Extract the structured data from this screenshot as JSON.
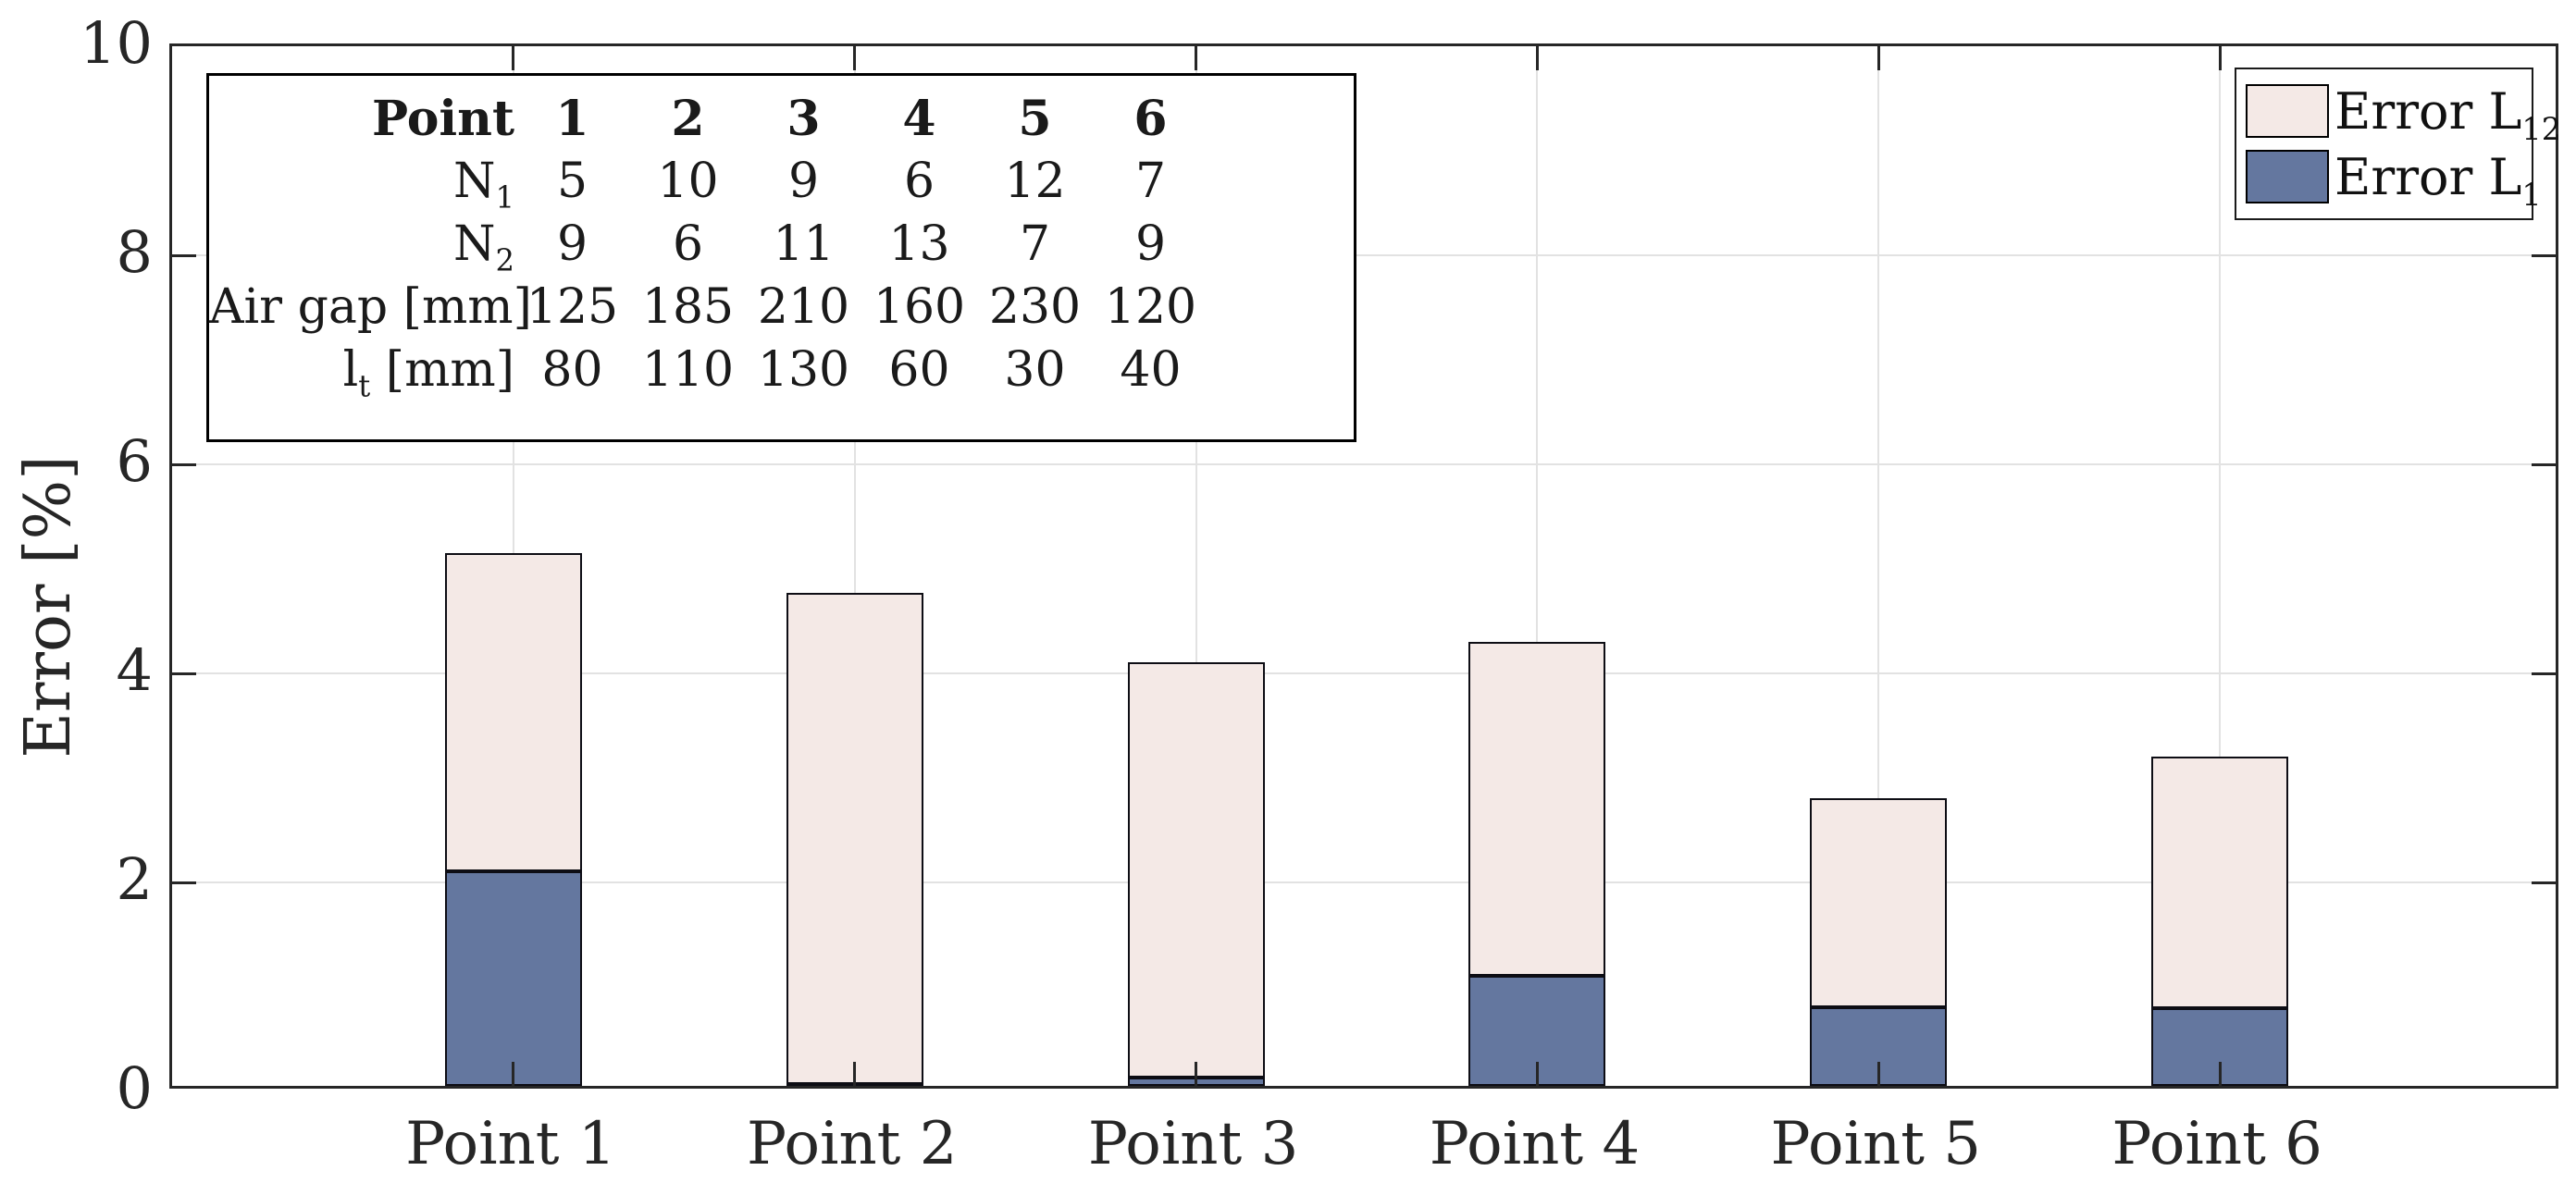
{
  "chart_data": {
    "type": "bar",
    "stacked": true,
    "categories": [
      "Point 1",
      "Point 2",
      "Point 3",
      "Point 4",
      "Point 5",
      "Point 6"
    ],
    "series": [
      {
        "name": "Error L1",
        "label_base": "Error L",
        "label_sub": "1",
        "color": "#64779F",
        "values": [
          2.05,
          0.02,
          0.08,
          1.05,
          0.75,
          0.74
        ]
      },
      {
        "name": "Error L12",
        "label_base": "Error L",
        "label_sub": "12",
        "color": "#F4E9E6",
        "values": [
          3.05,
          4.7,
          3.97,
          3.2,
          2.0,
          2.41
        ]
      }
    ],
    "stack_totals": [
      5.1,
      4.72,
      4.05,
      4.25,
      2.75,
      3.15
    ],
    "title": "",
    "xlabel": "",
    "ylabel": "Error [%]",
    "ylim": [
      0,
      10
    ],
    "yticks": [
      0,
      2,
      4,
      6,
      8,
      10
    ],
    "grid": true,
    "legend_position": "top-right",
    "bar_edge_color": "#0d0d14",
    "axis_color": "#262626",
    "gridline_color": "#e2e2e2"
  },
  "ylabel": "Error [%]",
  "legend": {
    "items": [
      {
        "label_base": "Error L",
        "label_sub": "12",
        "color": "#F4E9E6"
      },
      {
        "label_base": "Error L",
        "label_sub": "1",
        "color": "#64779F"
      }
    ]
  },
  "inset_table": {
    "rows": [
      {
        "label": "Point",
        "sub": "",
        "suffix": "",
        "header": true,
        "values": [
          "1",
          "2",
          "3",
          "4",
          "5",
          "6"
        ]
      },
      {
        "label": "N",
        "sub": "1",
        "suffix": "",
        "header": false,
        "values": [
          "5",
          "10",
          "9",
          "6",
          "12",
          "7"
        ]
      },
      {
        "label": "N",
        "sub": "2",
        "suffix": "",
        "header": false,
        "values": [
          "9",
          "6",
          "11",
          "13",
          "7",
          "9"
        ]
      },
      {
        "label": "Air gap [mm]",
        "sub": "",
        "suffix": "",
        "header": false,
        "values": [
          "125",
          "185",
          "210",
          "160",
          "230",
          "120"
        ]
      },
      {
        "label": "l",
        "sub": "t",
        "suffix": " [mm]",
        "header": false,
        "values": [
          "80",
          "110",
          "130",
          "60",
          "30",
          "40"
        ]
      }
    ]
  }
}
